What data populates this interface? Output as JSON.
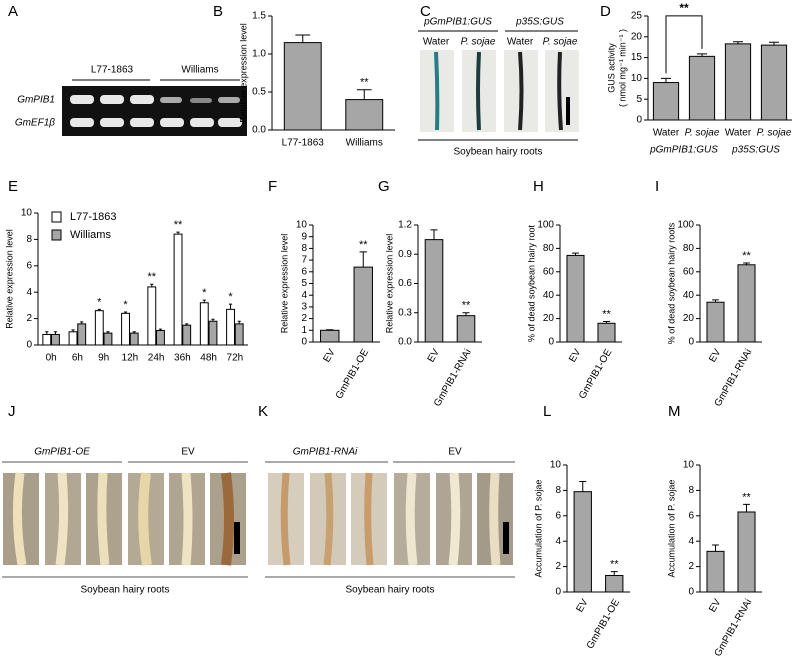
{
  "chart_data": [
    {
      "type": "bar",
      "panel": "B",
      "y_label": "Relative expression level",
      "categories": [
        "L77-1863",
        "Williams"
      ],
      "values": [
        1.15,
        0.4
      ],
      "errors": [
        0.1,
        0.13
      ],
      "significance": [
        null,
        "**"
      ],
      "color": "#a6a6a6",
      "ylim": [
        0,
        1.5
      ],
      "yticks": [
        {
          "value": 0,
          "label": "0.0"
        },
        0.5,
        {
          "value": 1,
          "label": "1.0"
        },
        1.5
      ]
    },
    {
      "type": "bar",
      "panel": "D",
      "y_label": "GUS activity",
      "y_label2": "( nmol mg⁻¹ min⁻¹ )",
      "categories": [
        "Water",
        "P. sojae",
        "Water",
        "P. sojae"
      ],
      "values": [
        9,
        15.3,
        18.3,
        18
      ],
      "errors": [
        1,
        0.6,
        0.5,
        0.7
      ],
      "color": "#a6a6a6",
      "ylim": [
        0,
        25
      ],
      "yticks": [
        0,
        5,
        10,
        15,
        20,
        25
      ],
      "groups": [
        {
          "label": "pGmPIB1:GUS",
          "span": [
            0,
            1
          ]
        },
        {
          "label": "p35S:GUS",
          "span": [
            2,
            3
          ]
        }
      ],
      "comparisons": [
        {
          "between": [
            0,
            1
          ],
          "label": "**"
        }
      ]
    },
    {
      "type": "grouped-bar",
      "panel": "E",
      "y_label": "Relative expression level",
      "categories": [
        "0h",
        "6h",
        "9h",
        "12h",
        "24h",
        "36h",
        "48h",
        "72h"
      ],
      "series": [
        {
          "name": "L77-1863",
          "color": "#ffffff",
          "values": [
            0.8,
            1,
            2.6,
            2.4,
            4.4,
            8.4,
            3.2,
            2.7
          ],
          "errors": [
            0.2,
            0.15,
            0.1,
            0.1,
            0.2,
            0.15,
            0.2,
            0.4
          ],
          "significance": [
            null,
            null,
            "*",
            "*",
            "**",
            "**",
            "*",
            "*"
          ]
        },
        {
          "name": "Williams",
          "color": "#a6a6a6",
          "values": [
            0.8,
            1.6,
            0.9,
            0.9,
            1.1,
            1.5,
            1.8,
            1.6
          ],
          "errors": [
            0.2,
            0.15,
            0.1,
            0.1,
            0.1,
            0.1,
            0.15,
            0.2
          ]
        }
      ],
      "legend": "top-left",
      "ylim": [
        0,
        10
      ],
      "yticks": [
        0,
        2,
        4,
        6,
        8,
        10
      ]
    },
    {
      "type": "bar",
      "panel": "F",
      "y_label": "Relative expression level",
      "categories": [
        "EV",
        "GmPIB1-OE"
      ],
      "values": [
        1,
        6.4
      ],
      "errors": [
        0.05,
        1.3
      ],
      "significance": [
        null,
        "**"
      ],
      "color": "#a6a6a6",
      "ylim": [
        0,
        10
      ],
      "yticks": [
        0,
        1,
        2,
        3,
        4,
        5,
        6,
        7,
        8,
        9,
        10
      ]
    },
    {
      "type": "bar",
      "panel": "G",
      "y_label": "Relative expression level",
      "categories": [
        "EV",
        "GmPIB1-RNAi"
      ],
      "values": [
        1.05,
        0.27
      ],
      "errors": [
        0.1,
        0.03
      ],
      "significance": [
        null,
        "**"
      ],
      "color": "#a6a6a6",
      "ylim": [
        0,
        1.2
      ],
      "yticks": [
        {
          "value": 0,
          "label": "0.0"
        },
        0.3,
        0.6,
        0.9,
        1.2
      ]
    },
    {
      "type": "bar",
      "panel": "H",
      "y_label": "% of dead soybean hairy root",
      "categories": [
        "EV",
        "GmPIB1-OE"
      ],
      "values": [
        74,
        16
      ],
      "errors": [
        2,
        1.5
      ],
      "significance": [
        null,
        "**"
      ],
      "color": "#a6a6a6",
      "ylim": [
        0,
        100
      ],
      "yticks": [
        0,
        20,
        40,
        60,
        80,
        100
      ]
    },
    {
      "type": "bar",
      "panel": "I",
      "y_label": "% of dead soybean hairy roots",
      "categories": [
        "EV",
        "GmPIB1-RNAi"
      ],
      "values": [
        34,
        66
      ],
      "errors": [
        2,
        1.5
      ],
      "significance": [
        null,
        "**"
      ],
      "color": "#a6a6a6",
      "ylim": [
        0,
        100
      ],
      "yticks": [
        0,
        20,
        40,
        60,
        80,
        100
      ]
    },
    {
      "type": "bar",
      "panel": "L",
      "y_label": "Accumulation of P. sojae",
      "categories": [
        "EV",
        "GmPIB1-OE"
      ],
      "values": [
        7.9,
        1.3
      ],
      "errors": [
        0.8,
        0.3
      ],
      "significance": [
        null,
        "**"
      ],
      "color": "#a6a6a6",
      "ylim": [
        0,
        10
      ],
      "yticks": [
        0,
        2,
        4,
        6,
        8,
        10
      ]
    },
    {
      "type": "bar",
      "panel": "M",
      "y_label": "Accumulation of P. sojae",
      "categories": [
        "EV",
        "GmPIB1-RNAi"
      ],
      "values": [
        3.2,
        6.3
      ],
      "errors": [
        0.5,
        0.6
      ],
      "significance": [
        null,
        "**"
      ],
      "color": "#a6a6a6",
      "ylim": [
        0,
        10
      ],
      "yticks": [
        0,
        2,
        4,
        6,
        8,
        10
      ]
    }
  ],
  "images": [
    {
      "panel": "A",
      "columns": [
        "L77-1863",
        "Williams"
      ],
      "rows": [
        "GmPIB1",
        "GmEF1β"
      ]
    },
    {
      "panel": "C",
      "groups": [
        "pGmPIB1:GUS",
        "p35S:GUS"
      ],
      "columns": [
        "Water",
        "P. sojae",
        "Water",
        "P. sojae"
      ],
      "caption": "Soybean hairy roots"
    },
    {
      "panel": "J",
      "groups": [
        "GmPIB1-OE",
        "EV"
      ],
      "caption": "Soybean hairy roots"
    },
    {
      "panel": "K",
      "groups": [
        "GmPIB1-RNAi",
        "EV"
      ],
      "caption": "Soybean hairy roots"
    }
  ]
}
